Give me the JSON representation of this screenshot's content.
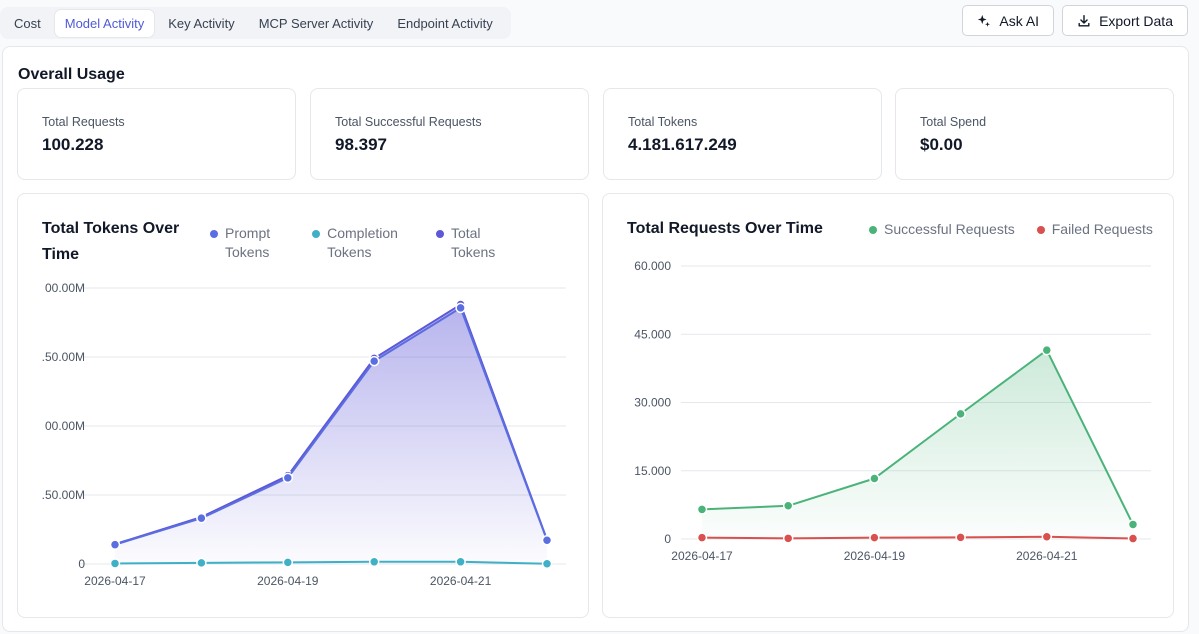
{
  "tabs": [
    {
      "label": "Cost",
      "active": false
    },
    {
      "label": "Model Activity",
      "active": true
    },
    {
      "label": "Key Activity",
      "active": false
    },
    {
      "label": "MCP Server Activity",
      "active": false
    },
    {
      "label": "Endpoint Activity",
      "active": false
    }
  ],
  "actions": {
    "ask_ai_label": "Ask AI",
    "export_label": "Export Data"
  },
  "overview": {
    "title": "Overall Usage",
    "stats": [
      {
        "label": "Total Requests",
        "value": "100.228"
      },
      {
        "label": "Total Successful Requests",
        "value": "98.397"
      },
      {
        "label": "Total Tokens",
        "value": "4.181.617.249"
      },
      {
        "label": "Total Spend",
        "value": "$0.00"
      }
    ]
  },
  "colors": {
    "prompt": "#5b6ee1",
    "completion": "#3fb0c6",
    "total": "#5e57d6",
    "successful": "#4bb37a",
    "failed": "#d9514e",
    "accent": "#4f5bd5"
  },
  "chart_data": [
    {
      "type": "area",
      "title_line1": "Total Tokens Over",
      "title_line2": "Time",
      "legend": [
        {
          "line1": "Prompt",
          "line2": "Tokens",
          "color_key": "prompt"
        },
        {
          "line1": "Completion",
          "line2": "Tokens",
          "color_key": "completion"
        },
        {
          "line1": "Total",
          "line2": "Tokens",
          "color_key": "total"
        }
      ],
      "x": [
        "2026-04-17",
        "2026-04-18",
        "2026-04-19",
        "2026-04-20",
        "2026-04-21",
        "2026-04-22"
      ],
      "x_tick_labels": [
        "2026-04-17",
        "",
        "2026-04-19",
        "",
        "2026-04-21",
        ""
      ],
      "y_ticks": [
        0,
        250,
        500,
        750,
        1000
      ],
      "y_tick_labels": [
        "0",
        ".50.00M",
        "00.00M",
        ".50.00M",
        "00.00M"
      ],
      "ylim": [
        0,
        1000
      ],
      "units": "M tokens",
      "series": [
        {
          "name": "Total Tokens",
          "values": [
            72,
            170,
            320,
            745,
            940,
            88
          ]
        },
        {
          "name": "Prompt Tokens",
          "values": [
            70,
            166,
            312,
            735,
            928,
            86
          ]
        },
        {
          "name": "Completion Tokens",
          "values": [
            2,
            4,
            6,
            8,
            8,
            1
          ]
        }
      ]
    },
    {
      "type": "area",
      "title": "Total Requests Over Time",
      "legend": [
        {
          "label": "Successful Requests",
          "color_key": "successful"
        },
        {
          "label": "Failed Requests",
          "color_key": "failed"
        }
      ],
      "x": [
        "2026-04-17",
        "2026-04-18",
        "2026-04-19",
        "2026-04-20",
        "2026-04-21",
        "2026-04-22"
      ],
      "x_tick_labels": [
        "2026-04-17",
        "",
        "2026-04-19",
        "",
        "2026-04-21",
        ""
      ],
      "y_ticks": [
        0,
        15000,
        30000,
        45000,
        60000
      ],
      "y_tick_labels": [
        "0",
        "15.000",
        "30.000",
        "45.000",
        "60.000"
      ],
      "ylim": [
        0,
        60000
      ],
      "series": [
        {
          "name": "Successful Requests",
          "values": [
            6500,
            7300,
            13300,
            27500,
            41500,
            3200
          ]
        },
        {
          "name": "Failed Requests",
          "values": [
            300,
            150,
            300,
            350,
            500,
            100
          ]
        }
      ]
    }
  ]
}
